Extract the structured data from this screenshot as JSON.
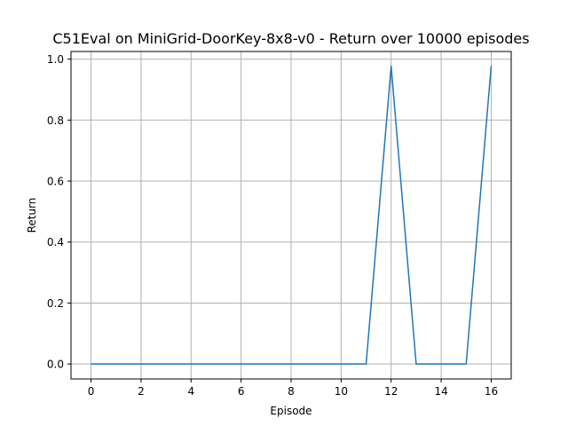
{
  "chart_data": {
    "type": "line",
    "title": "C51Eval on MiniGrid-DoorKey-8x8-v0 - Return over 10000 episodes",
    "xlabel": "Episode",
    "ylabel": "Return",
    "xlim": [
      -0.8,
      16.8
    ],
    "ylim": [
      -0.049,
      1.025
    ],
    "grid": true,
    "xticks": [
      0,
      2,
      4,
      6,
      8,
      10,
      12,
      14,
      16
    ],
    "xtick_labels": [
      "0",
      "2",
      "4",
      "6",
      "8",
      "10",
      "12",
      "14",
      "16"
    ],
    "yticks": [
      0.0,
      0.2,
      0.4,
      0.6,
      0.8,
      1.0
    ],
    "ytick_labels": [
      "0.0",
      "0.2",
      "0.4",
      "0.6",
      "0.8",
      "1.0"
    ],
    "series": [
      {
        "name": "Return",
        "color": "#1f77b4",
        "x": [
          0,
          1,
          2,
          3,
          4,
          5,
          6,
          7,
          8,
          9,
          10,
          11,
          12,
          13,
          14,
          15,
          16
        ],
        "values": [
          0,
          0,
          0,
          0,
          0,
          0,
          0,
          0,
          0,
          0,
          0,
          0,
          0.977,
          0,
          0,
          0,
          0.977
        ]
      }
    ]
  }
}
